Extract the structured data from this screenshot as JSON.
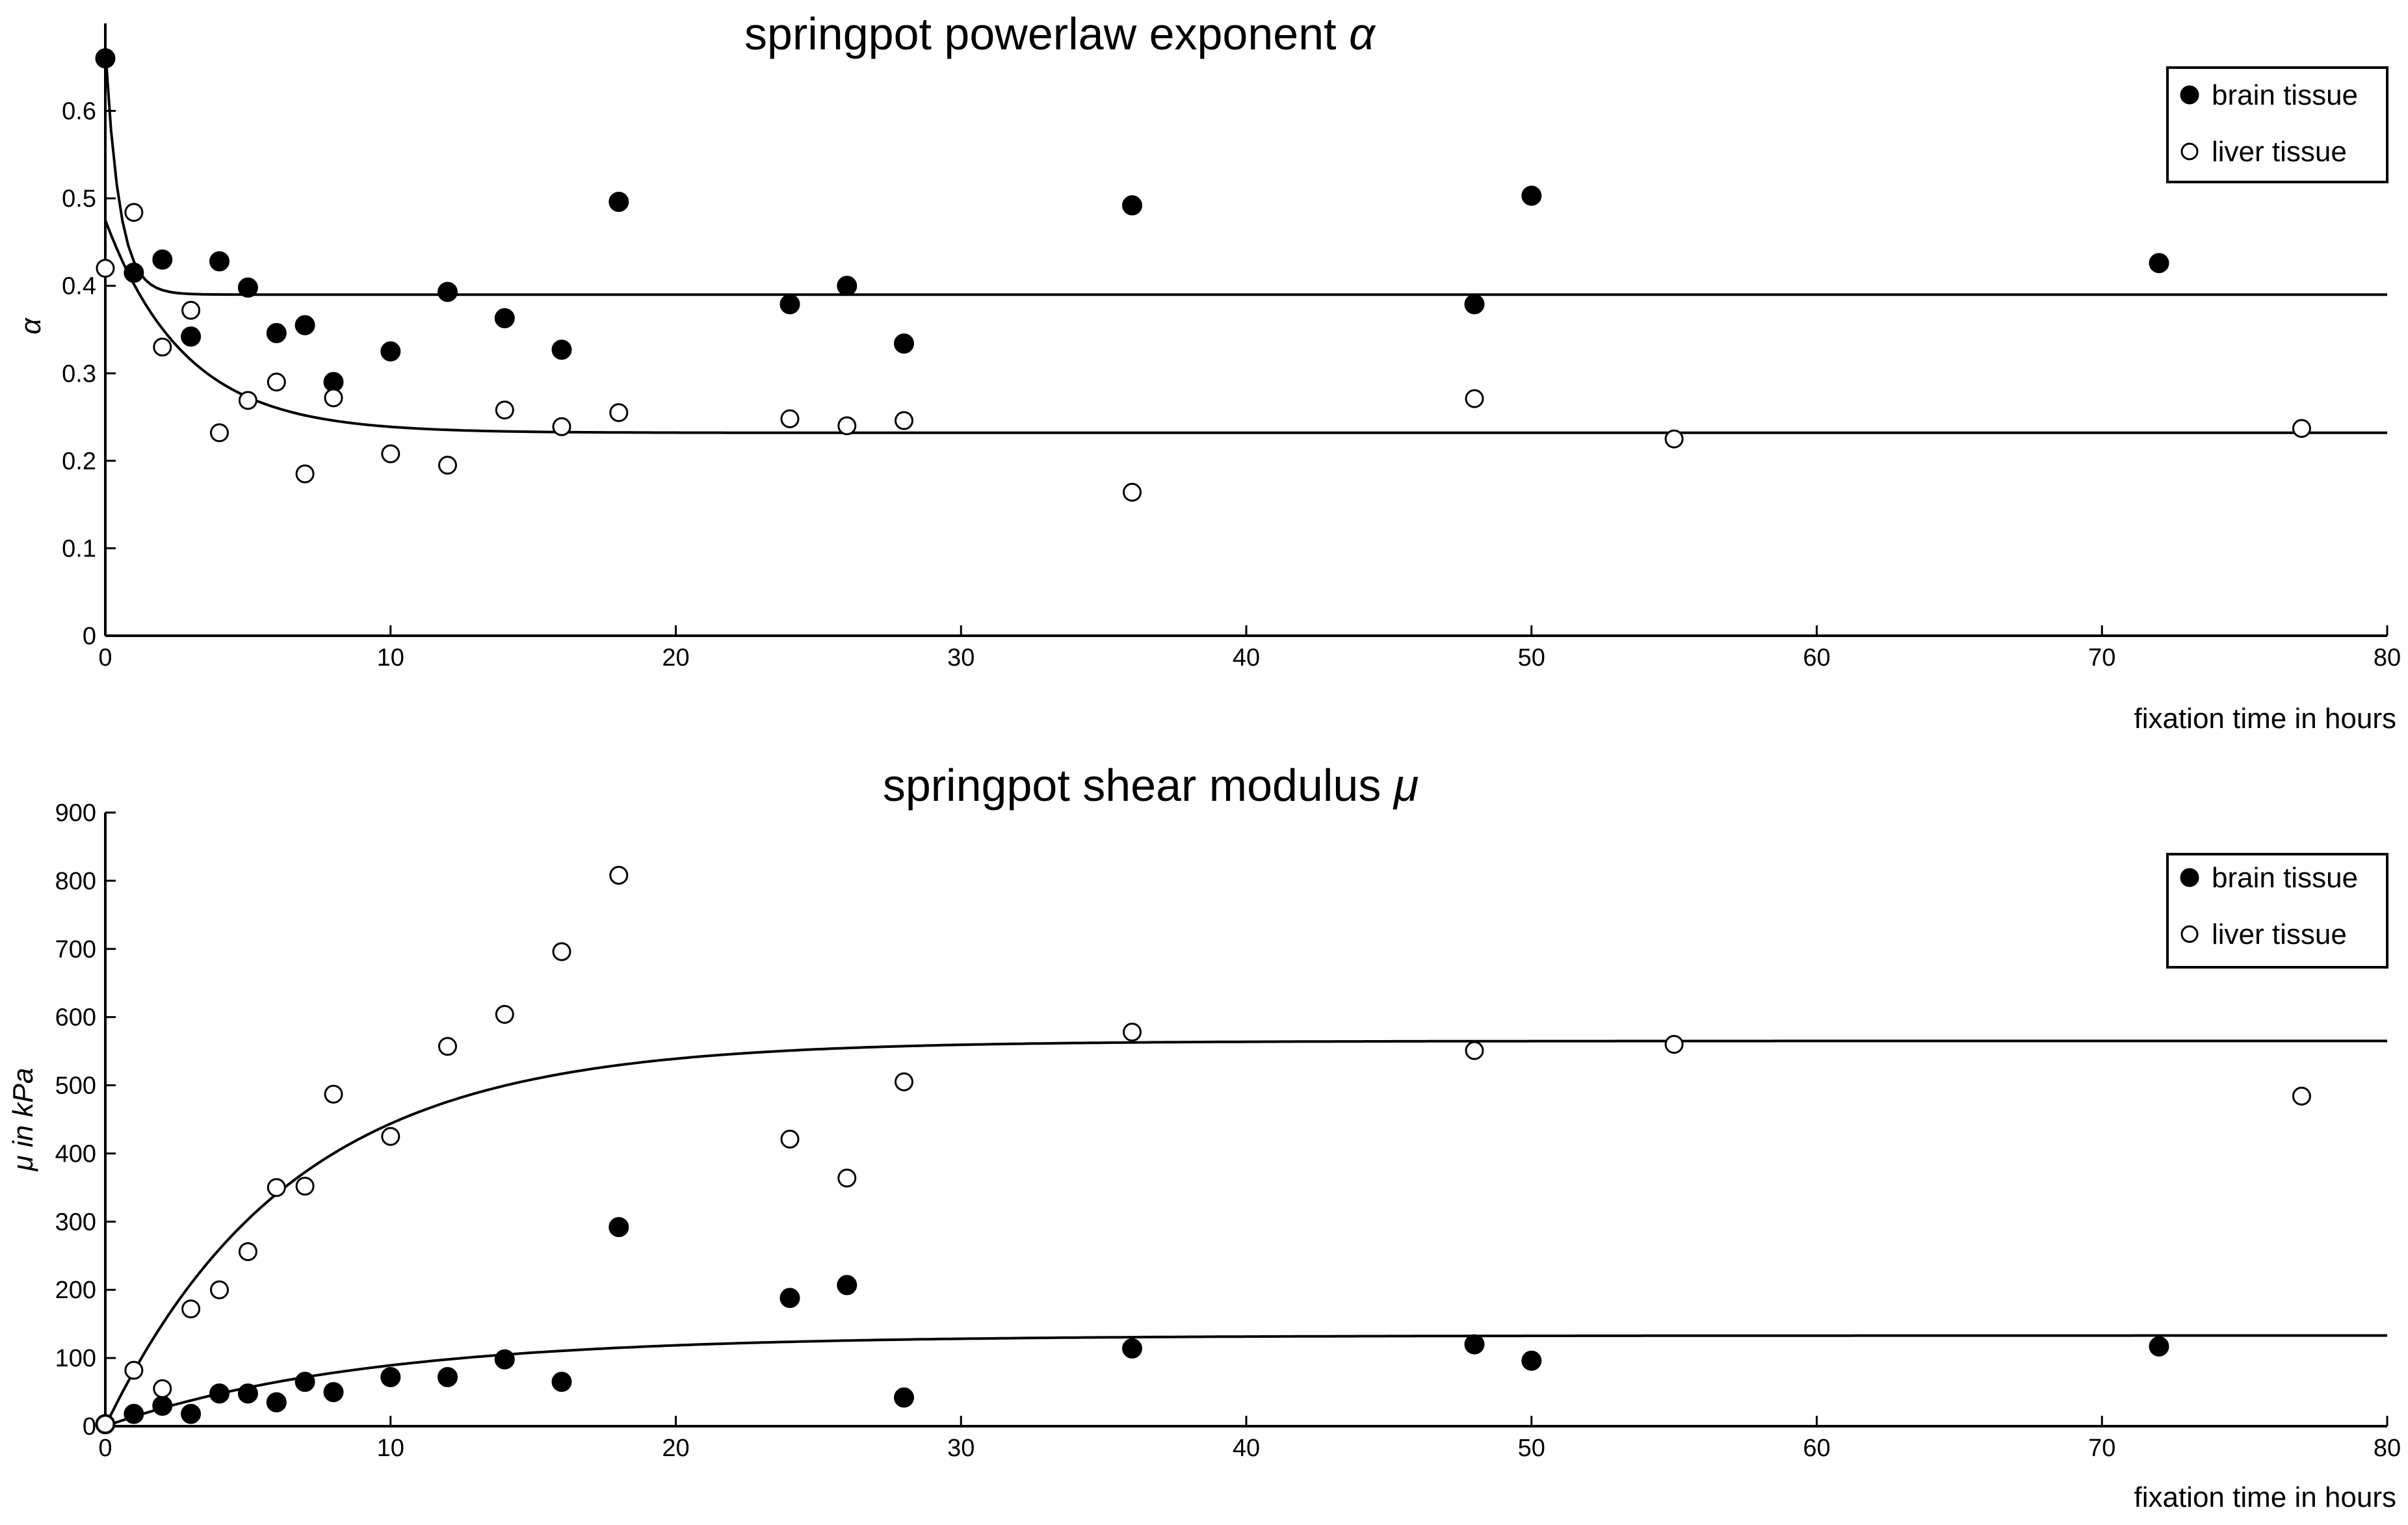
{
  "chart_data": [
    {
      "type": "scatter",
      "title": "springpot powerlaw exponent ",
      "title_symbol": "α",
      "xlabel": "fixation time in hours",
      "ylabel": "α",
      "xlim": [
        0,
        80
      ],
      "ylim": [
        0,
        0.7
      ],
      "xticks": [
        0,
        10,
        20,
        30,
        40,
        50,
        60,
        70,
        80
      ],
      "yticks": [
        0,
        0.1,
        0.2,
        0.3,
        0.4,
        0.5,
        0.6
      ],
      "ytick_labels": [
        "0",
        "0.1",
        "0.2",
        "0.3",
        "0.4",
        "0.5",
        "0.6"
      ],
      "legend_position": "top-right",
      "series": [
        {
          "name": "brain tissue",
          "marker": "filled-circle",
          "x": [
            0,
            1,
            2,
            3,
            4,
            5,
            6,
            7,
            8,
            10,
            12,
            14,
            16,
            18,
            24,
            26,
            28,
            36,
            48,
            50,
            72
          ],
          "y": [
            0.66,
            0.415,
            0.43,
            0.342,
            0.428,
            0.398,
            0.346,
            0.355,
            0.29,
            0.325,
            0.393,
            0.363,
            0.327,
            0.496,
            0.379,
            0.4,
            0.334,
            0.492,
            0.379,
            0.503,
            0.426
          ],
          "fit": {
            "y0": 0.67,
            "plateau": 0.39,
            "tau": 0.5
          }
        },
        {
          "name": "liver tissue",
          "marker": "open-circle",
          "x": [
            0,
            1,
            2,
            3,
            4,
            5,
            6,
            7,
            8,
            10,
            12,
            14,
            16,
            18,
            24,
            26,
            28,
            36,
            48,
            55,
            77
          ],
          "y": [
            0.42,
            0.484,
            0.33,
            0.372,
            0.232,
            0.269,
            0.29,
            0.185,
            0.272,
            0.208,
            0.195,
            0.258,
            0.239,
            0.255,
            0.248,
            0.24,
            0.246,
            0.164,
            0.271,
            0.225,
            0.237
          ],
          "fit": {
            "y0": 0.475,
            "plateau": 0.232,
            "tau": 2.8
          }
        }
      ]
    },
    {
      "type": "scatter",
      "title": "springpot shear modulus ",
      "title_symbol": "μ",
      "xlabel": "fixation time in hours",
      "ylabel": "μ in kPa",
      "xlim": [
        0,
        80
      ],
      "ylim": [
        0,
        900
      ],
      "xticks": [
        0,
        10,
        20,
        30,
        40,
        50,
        60,
        70,
        80
      ],
      "yticks": [
        0,
        100,
        200,
        300,
        400,
        500,
        600,
        700,
        800,
        900
      ],
      "ytick_labels": [
        "0",
        "100",
        "200",
        "300",
        "400",
        "500",
        "600",
        "700",
        "800",
        "900"
      ],
      "legend_position": "top-right",
      "series": [
        {
          "name": "brain tissue",
          "marker": "filled-circle",
          "x": [
            0,
            1,
            2,
            3,
            4,
            5,
            6,
            7,
            8,
            10,
            12,
            14,
            16,
            18,
            24,
            26,
            28,
            36,
            48,
            50,
            72
          ],
          "y": [
            3,
            18,
            30,
            18,
            48,
            48,
            35,
            65,
            50,
            72,
            72,
            98,
            65,
            292,
            188,
            207,
            42,
            114,
            120,
            96,
            117
          ],
          "fit": {
            "y0": 0,
            "plateau": 133,
            "tau": 9
          }
        },
        {
          "name": "liver tissue",
          "marker": "open-circle",
          "x": [
            0,
            1,
            2,
            3,
            4,
            5,
            6,
            7,
            8,
            10,
            12,
            14,
            16,
            18,
            24,
            26,
            28,
            36,
            48,
            55,
            77
          ],
          "y": [
            3,
            82,
            55,
            172,
            200,
            256,
            350,
            352,
            487,
            425,
            557,
            604,
            696,
            808,
            421,
            364,
            505,
            578,
            551,
            560,
            484
          ],
          "fit": {
            "y0": 0,
            "plateau": 565,
            "tau": 6.5
          }
        }
      ]
    }
  ]
}
